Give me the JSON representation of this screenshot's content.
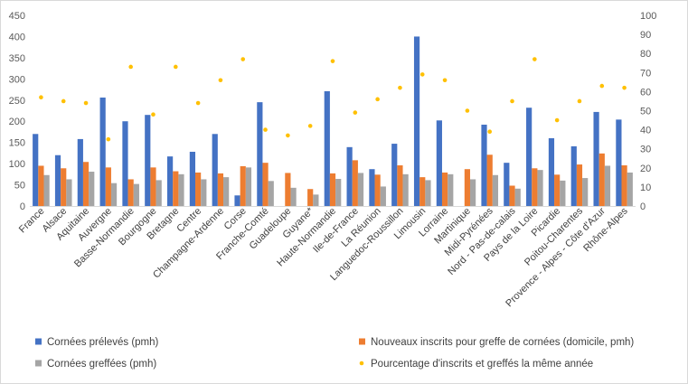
{
  "chart_data": {
    "type": "bar",
    "title": "",
    "categories": [
      "France",
      "Alsace",
      "Aquitaine",
      "Auvergne",
      "Basse-Normandie",
      "Bourgogne",
      "Bretagne",
      "Centre",
      "Champagne-Ardenne",
      "Corse",
      "Franche-Comté",
      "Guadeloupe",
      "Guyane*",
      "Haute-Normandie",
      "Ile-de-France",
      "La Réunion",
      "Languedoc-Roussillon",
      "Limousin",
      "Lorraine",
      "Martinique",
      "Midi-Pyrénées",
      "Nord - Pas-de-calais",
      "Pays de la Loire",
      "Picardie",
      "Poitou-Charentes",
      "Provence - Alpes - Côte d'Azur",
      "Rhône-Alpes"
    ],
    "series": [
      {
        "name": "Cornées prélevés (pmh)",
        "color": "#4472C4",
        "axis": "left",
        "values": [
          170,
          120,
          158,
          256,
          200,
          215,
          117,
          128,
          170,
          25,
          245,
          0,
          0,
          271,
          139,
          87,
          147,
          400,
          202,
          0,
          192,
          102,
          232,
          160,
          141,
          222,
          204
        ]
      },
      {
        "name": "Nouveaux inscrits pour greffe de cornées (domicile, pmh)",
        "color": "#ED7D31",
        "axis": "left",
        "values": [
          95,
          89,
          104,
          91,
          63,
          91,
          82,
          79,
          77,
          94,
          102,
          78,
          40,
          77,
          108,
          74,
          96,
          68,
          79,
          87,
          121,
          48,
          89,
          74,
          98,
          124,
          96
        ]
      },
      {
        "name": "Cornées greffées (pmh)",
        "color": "#A5A5A5",
        "axis": "left",
        "values": [
          73,
          63,
          81,
          54,
          52,
          61,
          75,
          63,
          68,
          91,
          59,
          43,
          27,
          64,
          78,
          46,
          75,
          61,
          75,
          63,
          73,
          41,
          85,
          60,
          66,
          95,
          79
        ]
      },
      {
        "name": "Pourcentage d'inscrits et greffés la même année",
        "color": "#FFC000",
        "axis": "right",
        "kind": "marker",
        "values": [
          57,
          55,
          54,
          35,
          73,
          48,
          73,
          54,
          66,
          77,
          40,
          37,
          42,
          76,
          49,
          56,
          62,
          69,
          66,
          50,
          39,
          55,
          77,
          45,
          55,
          63,
          62
        ]
      }
    ],
    "y_left": {
      "min": 0,
      "max": 450,
      "ticks": [
        0,
        50,
        100,
        150,
        200,
        250,
        300,
        350,
        400,
        450
      ]
    },
    "y_right": {
      "min": 0,
      "max": 100,
      "ticks": [
        0,
        10,
        20,
        30,
        40,
        50,
        60,
        70,
        80,
        90,
        100
      ]
    },
    "grid": false,
    "legend": {
      "position": "bottom",
      "items": [
        {
          "label": "Cornées prélevés (pmh)",
          "color": "#4472C4",
          "kind": "square"
        },
        {
          "label": "Nouveaux inscrits pour greffe de cornées (domicile, pmh)",
          "color": "#ED7D31",
          "kind": "square"
        },
        {
          "label": "Cornées greffées (pmh)",
          "color": "#A5A5A5",
          "kind": "square"
        },
        {
          "label": "Pourcentage d'inscrits et greffés la même année",
          "color": "#FFC000",
          "kind": "dot"
        }
      ]
    }
  }
}
